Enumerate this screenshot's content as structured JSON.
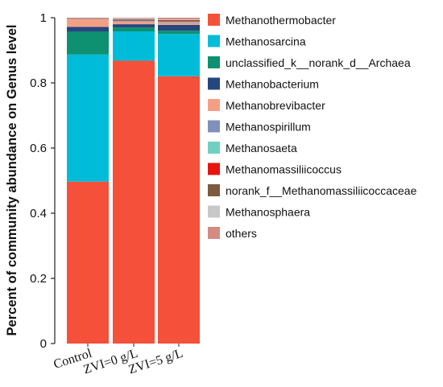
{
  "chart_data": {
    "type": "bar",
    "stacked": true,
    "title": "",
    "xlabel": "",
    "ylabel": "Percent of community abundance on Genus level",
    "ylim": [
      0,
      1
    ],
    "yticks": [
      "0",
      "0.2",
      "0.4",
      "0.6",
      "0.8",
      "1"
    ],
    "categories": [
      "Control",
      "ZVI=0 g/L",
      "ZVI=5 g/L"
    ],
    "legend_position": "right",
    "series": [
      {
        "name": "Methanothermobacter",
        "color": "#f5503a",
        "values": [
          0.497,
          0.868,
          0.82
        ]
      },
      {
        "name": "Methanosarcina",
        "color": "#00bcd8",
        "values": [
          0.39,
          0.09,
          0.13
        ]
      },
      {
        "name": "unclassified_k__norank_d__Archaea",
        "color": "#0d9170",
        "values": [
          0.07,
          0.012,
          0.01
        ]
      },
      {
        "name": "Methanobacterium",
        "color": "#26477e",
        "values": [
          0.015,
          0.01,
          0.018
        ]
      },
      {
        "name": "Methanobrevibacter",
        "color": "#f5a085",
        "values": [
          0.023,
          0.007,
          0.006
        ]
      },
      {
        "name": "Methanospirillum",
        "color": "#7f91bb",
        "values": [
          0.001,
          0.002,
          0.002
        ]
      },
      {
        "name": "Methanosaeta",
        "color": "#6fd0c0",
        "values": [
          0.001,
          0.002,
          0.002
        ]
      },
      {
        "name": "Methanomassiliicoccus",
        "color": "#e8140f",
        "values": [
          0.001,
          0.002,
          0.002
        ]
      },
      {
        "name": "norank_f__Methanomassiliicoccaceae",
        "color": "#7e5a3e",
        "values": [
          0.001,
          0.002,
          0.003
        ]
      },
      {
        "name": "Methanosphaera",
        "color": "#c8c8c8",
        "values": [
          0.0,
          0.003,
          0.002
        ]
      },
      {
        "name": "others",
        "color": "#d58a82",
        "values": [
          0.001,
          0.002,
          0.005
        ]
      }
    ]
  }
}
